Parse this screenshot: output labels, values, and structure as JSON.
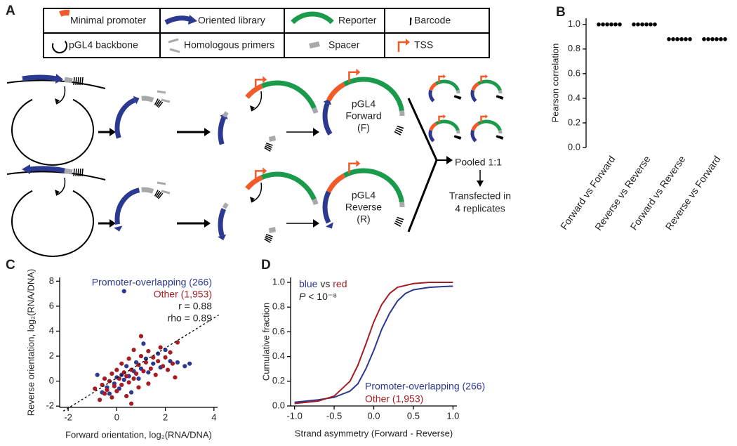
{
  "diagram": {
    "panel": "A",
    "legend": [
      "Minimal promoter",
      "Oriented library",
      "Reporter",
      "Barcode",
      "pGL4 backbone",
      "Homologous primers",
      "Spacer",
      "TSS"
    ],
    "plasmids": [
      [
        "pGL4",
        "Forward",
        "(F)"
      ],
      [
        "pGL4",
        "Reverse",
        "(R)"
      ]
    ],
    "pooled": "Pooled 1:1",
    "transfected": [
      "Transfected in",
      "4 replicates"
    ]
  },
  "chart_data": [
    {
      "type": "dot",
      "panel": "B",
      "ylabel": "Pearson correlation",
      "color": "#000000",
      "categories": [
        "Forward vs Forward",
        "Reverse vs Reverse",
        "Forward vs Reverse",
        "Reverse vs Forward"
      ],
      "values": [
        [
          1.0,
          1.0,
          1.0,
          1.0,
          1.0,
          1.0
        ],
        [
          1.0,
          1.0,
          1.0,
          1.0,
          1.0,
          1.0
        ],
        [
          0.88,
          0.88,
          0.88,
          0.88,
          0.88,
          0.88
        ],
        [
          0.88,
          0.88,
          0.88,
          0.88,
          0.88,
          0.88
        ]
      ],
      "ylim": [
        0,
        1.05
      ],
      "yticks": [
        {
          "value": 0,
          "label": "0.0"
        },
        0.2,
        0.4,
        0.6,
        0.8,
        {
          "value": 1,
          "label": "1.0"
        }
      ]
    },
    {
      "type": "scatter",
      "panel": "C",
      "xlabel": "Forward orientation, log₂(RNA/DNA)",
      "ylabel": "Reverse orientation, log₂(RNA/DNA)",
      "xlim": [
        -2.35,
        4.15
      ],
      "ylim": [
        -2.1,
        8.3
      ],
      "xticks": [
        -2,
        0,
        2,
        4
      ],
      "yticks": [
        -2,
        0,
        2,
        4,
        6,
        8
      ],
      "annotations": [
        "r = 0.88",
        "rho = 0.89"
      ],
      "reference_line": {
        "x": [
          -2.2,
          4.2
        ],
        "y": [
          -2.4,
          5.3
        ]
      },
      "series": [
        {
          "name": "Promoter-overlapping (266)",
          "color": "#2b3990",
          "x": [
            -0.6,
            -0.4,
            -0.3,
            -0.1,
            0,
            0.1,
            0.2,
            0.3,
            0.3,
            0.4,
            0.5,
            0.6,
            0.7,
            0.8,
            0.9,
            1.0,
            1.2,
            1.3,
            1.5,
            1.7,
            1.8,
            2.0,
            2.2,
            2.5,
            2.8,
            3.0,
            -0.8,
            1.1
          ],
          "values": [
            -0.9,
            -0.5,
            -1.0,
            -0.2,
            0.3,
            -0.6,
            0.5,
            7.2,
            0.1,
            1.2,
            0.4,
            -0.9,
            0.8,
            1.5,
            0.2,
            1.0,
            1.8,
            0.7,
            1.4,
            2.2,
            1.1,
            2.5,
            1.6,
            1.5,
            1.2,
            1.4,
            0.5,
            3.0
          ]
        },
        {
          "name": "Other (1,953)",
          "color": "#a51d23",
          "x": [
            -0.7,
            -0.6,
            -0.5,
            -0.5,
            -0.4,
            -0.3,
            -0.2,
            -0.2,
            -0.1,
            0,
            0,
            0.1,
            0.2,
            0.2,
            0.3,
            0.4,
            0.4,
            0.5,
            0.5,
            0.6,
            0.7,
            0.7,
            0.8,
            0.9,
            0.9,
            1.0,
            1.1,
            1.2,
            1.3,
            1.3,
            1.4,
            1.5,
            1.6,
            1.7,
            1.8,
            1.9,
            2.0,
            2.1,
            2.2,
            2.3,
            2.5,
            2.4,
            1.0,
            -0.9,
            0.6
          ],
          "values": [
            -1.5,
            -0.3,
            -1.0,
            0.2,
            -0.7,
            0.0,
            -1.3,
            0.6,
            -0.4,
            0.9,
            -0.8,
            0.2,
            -0.3,
            1.4,
            0.7,
            -1.2,
            0.4,
            1.8,
            -0.1,
            0.9,
            0.2,
            2.5,
            0.6,
            1.3,
            -0.5,
            2.0,
            0.8,
            1.5,
            -0.2,
            2.4,
            1.0,
            1.9,
            0.5,
            1.6,
            2.7,
            1.2,
            1.9,
            0.9,
            2.3,
            1.4,
            3.1,
            0.3,
            3.6,
            -0.6,
            -1.8
          ]
        }
      ]
    },
    {
      "type": "line",
      "panel": "D",
      "xlabel": "Strand asymmetry (Forward - Reverse)",
      "ylabel": "Cumulative fraction",
      "xlim": [
        -1.05,
        1.05
      ],
      "ylim": [
        0,
        1.04
      ],
      "xticks": [
        {
          "value": -1,
          "label": "-1.0"
        },
        -0.5,
        {
          "value": 0,
          "label": "0.0"
        },
        0.5,
        {
          "value": 1,
          "label": "1.0"
        }
      ],
      "yticks": [
        {
          "value": 0,
          "label": "0.0"
        },
        0.2,
        0.4,
        0.6,
        0.8,
        {
          "value": 1,
          "label": "1.0"
        }
      ],
      "comparison": [
        "blue",
        " vs ",
        "red"
      ],
      "p_value": [
        "P",
        " < 10⁻⁸"
      ],
      "series": [
        {
          "name": "Promoter-overlapping (266)",
          "color": "#2b3990",
          "x": [
            -1.0,
            -0.7,
            -0.5,
            -0.3,
            -0.2,
            -0.1,
            0,
            0.1,
            0.2,
            0.3,
            0.4,
            0.5,
            0.7,
            1.0
          ],
          "values": [
            0.03,
            0.05,
            0.07,
            0.12,
            0.18,
            0.3,
            0.45,
            0.62,
            0.75,
            0.85,
            0.91,
            0.94,
            0.96,
            0.97
          ]
        },
        {
          "name": "Other (1,953)",
          "color": "#a51d23",
          "x": [
            -1.0,
            -0.7,
            -0.5,
            -0.3,
            -0.2,
            -0.1,
            0,
            0.1,
            0.2,
            0.3,
            0.5,
            0.7,
            1.0
          ],
          "values": [
            0.02,
            0.04,
            0.08,
            0.2,
            0.33,
            0.5,
            0.68,
            0.82,
            0.91,
            0.96,
            0.99,
            1.0,
            1.0
          ]
        }
      ]
    }
  ]
}
